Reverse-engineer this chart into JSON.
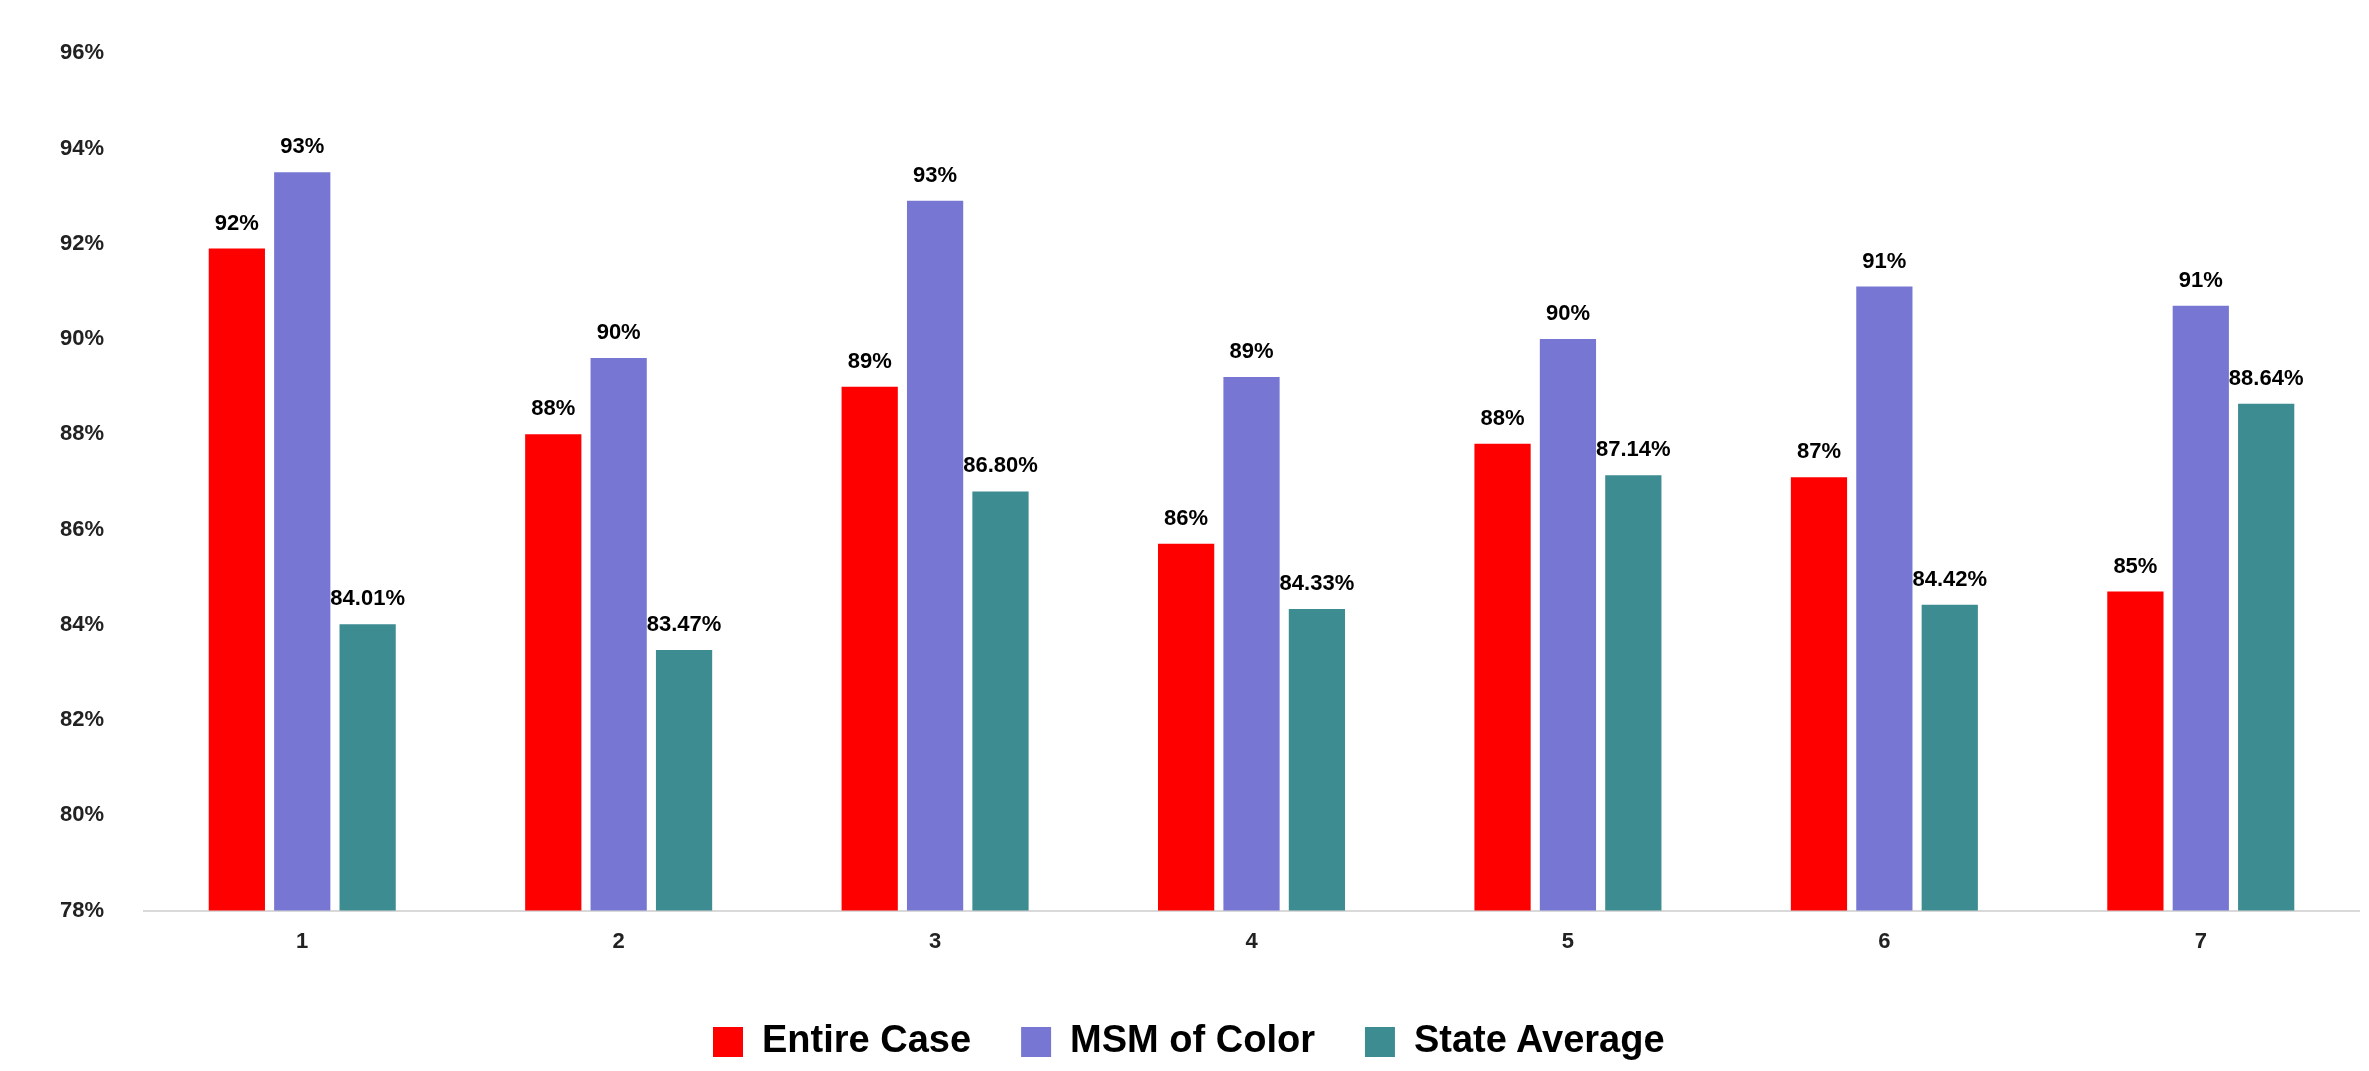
{
  "chart_data": {
    "type": "bar",
    "categories": [
      "1",
      "2",
      "3",
      "4",
      "5",
      "6",
      "7"
    ],
    "series": [
      {
        "name": "Entire Case",
        "color": "#ff0000",
        "values": [
          91.9,
          88.0,
          89.0,
          85.7,
          87.8,
          87.1,
          84.7
        ],
        "value_labels": [
          "92%",
          "88%",
          "89%",
          "86%",
          "88%",
          "87%",
          "85%"
        ]
      },
      {
        "name": "MSM of Color",
        "color": "#7777d3",
        "values": [
          93.5,
          89.6,
          92.9,
          89.2,
          90.0,
          91.1,
          90.7
        ],
        "value_labels": [
          "93%",
          "90%",
          "93%",
          "89%",
          "90%",
          "91%",
          "91%"
        ]
      },
      {
        "name": "State Average",
        "color": "#3d8c91",
        "values": [
          84.01,
          83.47,
          86.8,
          84.33,
          87.14,
          84.42,
          88.64
        ],
        "value_labels": [
          "84.01%",
          "83.47%",
          "86.80%",
          "84.33%",
          "87.14%",
          "84.42%",
          "88.64%"
        ]
      }
    ],
    "ylim": [
      78,
      96
    ],
    "yticks": [
      {
        "value": 78,
        "label": "78%"
      },
      {
        "value": 80,
        "label": "80%"
      },
      {
        "value": 82,
        "label": "82%"
      },
      {
        "value": 84,
        "label": "84%"
      },
      {
        "value": 86,
        "label": "86%"
      },
      {
        "value": 88,
        "label": "88%"
      },
      {
        "value": 90,
        "label": "90%"
      },
      {
        "value": 92,
        "label": "92%"
      },
      {
        "value": 94,
        "label": "94%"
      },
      {
        "value": 96,
        "label": "96%"
      }
    ],
    "grid": false,
    "legend": "bottom"
  }
}
